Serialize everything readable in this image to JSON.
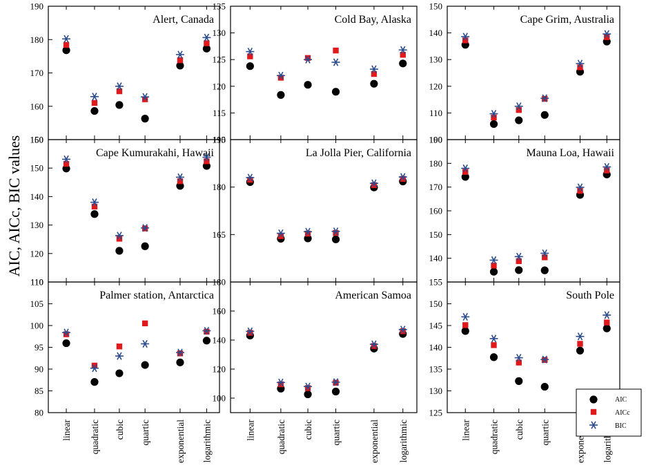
{
  "figure": {
    "ylabel": "AIC, AICc, BIC values",
    "legend": [
      {
        "name": "AIC",
        "marker": "circle",
        "color": "#000000"
      },
      {
        "name": "AICc",
        "marker": "square",
        "color": "#e0191c"
      },
      {
        "name": "BIC",
        "marker": "asterisk",
        "color": "#2a4b8d"
      }
    ]
  },
  "chart_data": [
    {
      "type": "scatter",
      "title": "Alert, Canada",
      "categories": [
        "linear",
        "quadratic",
        "cubic",
        "quartic",
        "exponential",
        "logarithmic"
      ],
      "ylim": [
        150,
        190
      ],
      "yticks": [
        150,
        160,
        170,
        180,
        190
      ],
      "series": [
        {
          "name": "AIC",
          "values": [
            177.0,
            158.8,
            160.6,
            156.5,
            172.4,
            177.5
          ]
        },
        {
          "name": "AICc",
          "values": [
            178.4,
            161.0,
            164.5,
            162.1,
            173.8,
            178.9
          ]
        },
        {
          "name": "BIC",
          "values": [
            180.2,
            162.9,
            166.0,
            162.8,
            175.5,
            180.6
          ]
        }
      ]
    },
    {
      "type": "scatter",
      "title": "Cold Bay, Alaska",
      "categories": [
        "linear",
        "quadratic",
        "cubic",
        "quartic",
        "exponential",
        "logarithmic"
      ],
      "ylim": [
        110,
        135
      ],
      "yticks": [
        110,
        115,
        120,
        125,
        130,
        135
      ],
      "series": [
        {
          "name": "AIC",
          "values": [
            123.9,
            118.5,
            120.4,
            119.1,
            120.6,
            124.4
          ]
        },
        {
          "name": "AICc",
          "values": [
            125.6,
            121.6,
            125.3,
            126.7,
            122.3,
            125.9
          ]
        },
        {
          "name": "BIC",
          "values": [
            126.5,
            122.0,
            125.0,
            124.5,
            123.2,
            126.8
          ]
        }
      ]
    },
    {
      "type": "scatter",
      "title": "Cape Grim, Australia",
      "categories": [
        "linear",
        "quadratic",
        "cubic",
        "quartic",
        "exponential",
        "logarithmic"
      ],
      "ylim": [
        100,
        150
      ],
      "yticks": [
        100,
        110,
        120,
        130,
        140,
        150
      ],
      "series": [
        {
          "name": "AIC",
          "values": [
            135.8,
            106.1,
            107.5,
            109.5,
            125.7,
            137.0
          ]
        },
        {
          "name": "AICc",
          "values": [
            137.2,
            108.3,
            111.1,
            115.3,
            127.1,
            138.4
          ]
        },
        {
          "name": "BIC",
          "values": [
            138.6,
            109.7,
            112.5,
            115.5,
            128.5,
            139.6
          ]
        }
      ]
    },
    {
      "type": "scatter",
      "title": "Cape Kumurakahi, Hawaii",
      "categories": [
        "linear",
        "quadratic",
        "cubic",
        "quartic",
        "exponential",
        "logarithmic"
      ],
      "ylim": [
        110,
        160
      ],
      "yticks": [
        110,
        120,
        130,
        140,
        150,
        160
      ],
      "series": [
        {
          "name": "AIC",
          "values": [
            150.1,
            134.1,
            121.2,
            122.8,
            144.0,
            151.0
          ]
        },
        {
          "name": "AICc",
          "values": [
            151.5,
            136.5,
            125.2,
            128.8,
            145.4,
            152.4
          ]
        },
        {
          "name": "BIC",
          "values": [
            153.1,
            138.0,
            126.3,
            129.0,
            146.8,
            153.8
          ]
        }
      ]
    },
    {
      "type": "scatter",
      "title": "La Jolla Pier, California",
      "categories": [
        "linear",
        "quadratic",
        "cubic",
        "quartic",
        "exponential",
        "logarithmic"
      ],
      "ylim": [
        150,
        195
      ],
      "yticks": [
        150,
        165,
        180,
        195
      ],
      "yticklabels": [
        "",
        "165",
        "180",
        "195"
      ],
      "series": [
        {
          "name": "AIC",
          "values": [
            181.8,
            163.9,
            164.0,
            163.7,
            180.1,
            182.0
          ]
        },
        {
          "name": "AICc",
          "values": [
            182.3,
            164.5,
            165.3,
            165.5,
            180.6,
            182.6
          ]
        },
        {
          "name": "BIC",
          "values": [
            183.0,
            165.4,
            165.9,
            166.0,
            181.2,
            183.2
          ]
        }
      ]
    },
    {
      "type": "scatter",
      "title": "Mauna Loa, Hawaii",
      "categories": [
        "linear",
        "quadratic",
        "cubic",
        "quartic",
        "exponential",
        "logarithmic"
      ],
      "ylim": [
        130,
        190
      ],
      "yticks": [
        140,
        150,
        160,
        170,
        180,
        190
      ],
      "series": [
        {
          "name": "AIC",
          "values": [
            174.6,
            134.6,
            135.3,
            135.2,
            167.0,
            175.6
          ]
        },
        {
          "name": "AICc",
          "values": [
            176.4,
            136.9,
            138.8,
            140.4,
            168.4,
            177.0
          ]
        },
        {
          "name": "BIC",
          "values": [
            177.9,
            139.2,
            140.7,
            142.1,
            169.9,
            178.5
          ]
        }
      ]
    },
    {
      "type": "scatter",
      "title": "Palmer station, Antarctica",
      "categories": [
        "linear",
        "quadratic",
        "cubic",
        "quartic",
        "exponential",
        "logarithmic"
      ],
      "ylim": [
        80,
        110
      ],
      "yticks": [
        80,
        85,
        90,
        95,
        100,
        105,
        110
      ],
      "series": [
        {
          "name": "AIC",
          "values": [
            96.1,
            87.2,
            89.2,
            91.1,
            91.7,
            96.7
          ]
        },
        {
          "name": "AICc",
          "values": [
            98.0,
            90.8,
            95.2,
            100.5,
            93.6,
            98.6
          ]
        },
        {
          "name": "BIC",
          "values": [
            98.4,
            90.2,
            93.0,
            95.8,
            93.8,
            98.8
          ]
        }
      ]
    },
    {
      "type": "scatter",
      "title": "American Samoa",
      "categories": [
        "linear",
        "quadratic",
        "cubic",
        "quartic",
        "exponential",
        "logarithmic"
      ],
      "ylim": [
        90,
        180
      ],
      "yticks": [
        100,
        120,
        140,
        160,
        180
      ],
      "series": [
        {
          "name": "AIC",
          "values": [
            143.6,
            107.0,
            103.1,
            105.0,
            134.6,
            144.7
          ]
        },
        {
          "name": "AICc",
          "values": [
            145.0,
            109.5,
            106.9,
            110.6,
            135.9,
            146.1
          ]
        },
        {
          "name": "BIC",
          "values": [
            146.0,
            110.8,
            108.0,
            111.0,
            137.1,
            147.2
          ]
        }
      ]
    },
    {
      "type": "scatter",
      "title": "South Pole",
      "categories": [
        "linear",
        "quadratic",
        "cubic",
        "quartic",
        "exponential",
        "logarithmic"
      ],
      "ylim": [
        125,
        155
      ],
      "yticks": [
        125,
        130,
        135,
        140,
        145,
        150,
        155
      ],
      "series": [
        {
          "name": "AIC",
          "values": [
            143.9,
            137.9,
            132.4,
            131.1,
            139.4,
            144.5
          ]
        },
        {
          "name": "AICc",
          "values": [
            145.1,
            140.5,
            136.5,
            137.1,
            140.8,
            145.7
          ]
        },
        {
          "name": "BIC",
          "values": [
            147.0,
            142.0,
            137.6,
            137.2,
            142.5,
            147.4
          ]
        }
      ]
    }
  ]
}
